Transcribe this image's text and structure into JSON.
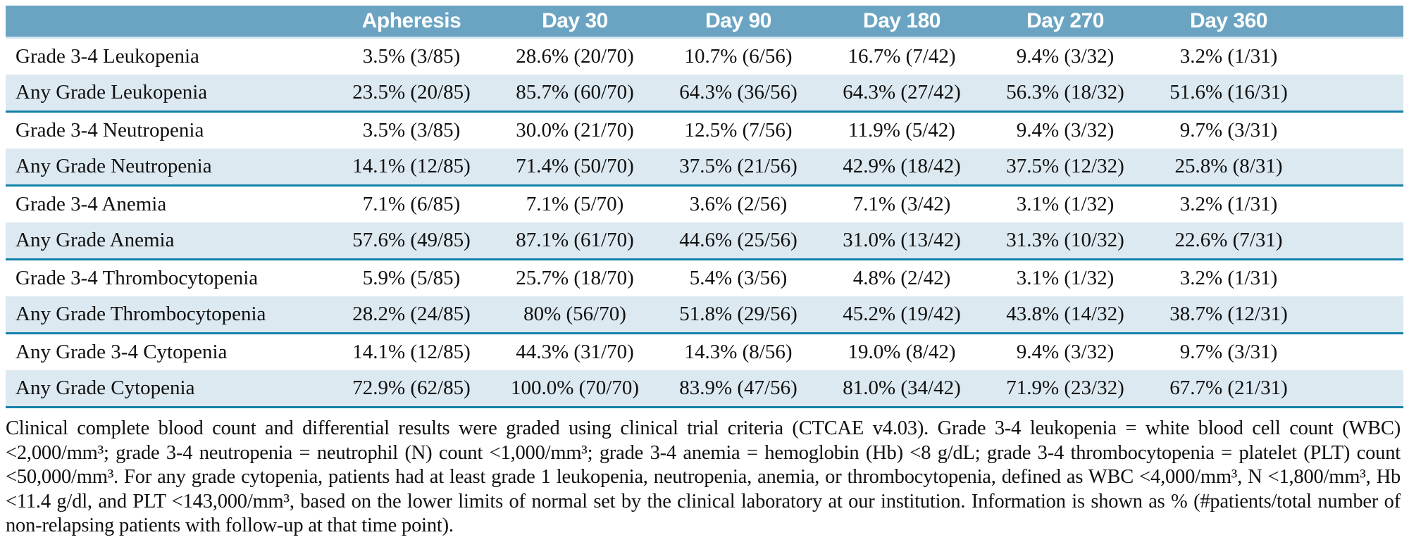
{
  "colors": {
    "header_bg": "#6aa4c2",
    "header_text": "#ffffff",
    "row_shade": "#dce9f0",
    "rule": "#1180a9",
    "text": "#101010"
  },
  "table": {
    "column_headers": [
      "",
      "Apheresis",
      "Day 30",
      "Day 90",
      "Day 180",
      "Day 270",
      "Day 360"
    ],
    "rows": [
      {
        "label": "Grade 3-4 Leukopenia",
        "shaded": false,
        "values": [
          "3.5% (3/85)",
          "28.6% (20/70)",
          "10.7% (6/56)",
          "16.7% (7/42)",
          "9.4% (3/32)",
          "3.2% (1/31)"
        ]
      },
      {
        "label": "Any Grade Leukopenia",
        "shaded": true,
        "values": [
          "23.5% (20/85)",
          "85.7% (60/70)",
          "64.3% (36/56)",
          "64.3% (27/42)",
          "56.3% (18/32)",
          "51.6% (16/31)"
        ]
      },
      {
        "label": "Grade 3-4 Neutropenia",
        "shaded": false,
        "values": [
          "3.5% (3/85)",
          "30.0% (21/70)",
          "12.5% (7/56)",
          "11.9% (5/42)",
          "9.4% (3/32)",
          "9.7% (3/31)"
        ]
      },
      {
        "label": "Any Grade Neutropenia",
        "shaded": true,
        "values": [
          "14.1% (12/85)",
          "71.4% (50/70)",
          "37.5% (21/56)",
          "42.9% (18/42)",
          "37.5% (12/32)",
          "25.8% (8/31)"
        ]
      },
      {
        "label": "Grade 3-4 Anemia",
        "shaded": false,
        "values": [
          "7.1% (6/85)",
          "7.1% (5/70)",
          "3.6% (2/56)",
          "7.1% (3/42)",
          "3.1% (1/32)",
          "3.2% (1/31)"
        ]
      },
      {
        "label": "Any Grade Anemia",
        "shaded": true,
        "values": [
          "57.6% (49/85)",
          "87.1% (61/70)",
          "44.6% (25/56)",
          "31.0% (13/42)",
          "31.3% (10/32)",
          "22.6% (7/31)"
        ]
      },
      {
        "label": "Grade 3-4 Thrombocytopenia",
        "shaded": false,
        "values": [
          "5.9% (5/85)",
          "25.7% (18/70)",
          "5.4% (3/56)",
          "4.8% (2/42)",
          "3.1% (1/32)",
          "3.2% (1/31)"
        ]
      },
      {
        "label": "Any Grade Thrombocytopenia",
        "shaded": true,
        "values": [
          "28.2% (24/85)",
          "80% (56/70)",
          "51.8% (29/56)",
          "45.2% (19/42)",
          "43.8% (14/32)",
          "38.7% (12/31)"
        ]
      },
      {
        "label": "Any Grade 3-4 Cytopenia",
        "shaded": false,
        "values": [
          "14.1% (12/85)",
          "44.3% (31/70)",
          "14.3% (8/56)",
          "19.0% (8/42)",
          "9.4% (3/32)",
          "9.7% (3/31)"
        ]
      },
      {
        "label": "Any Grade Cytopenia",
        "shaded": true,
        "values": [
          "72.9% (62/85)",
          "100.0% (70/70)",
          "83.9% (47/56)",
          "81.0% (34/42)",
          "71.9% (23/32)",
          "67.7% (21/31)"
        ]
      }
    ]
  },
  "footnote": "Clinical complete blood count and differential results were graded using clinical trial criteria (CTCAE v4.03). Grade 3-4 leukopenia = white blood cell count (WBC) <2,000/mm³; grade 3-4 neutropenia = neutrophil (N) count <1,000/mm³; grade 3-4 anemia = hemoglobin (Hb) <8 g/dL; grade 3-4 thrombocytopenia = platelet (PLT) count <50,000/mm³. For any grade cytopenia, patients had at least grade 1 leukopenia, neutropenia, anemia, or thrombocytopenia, defined as WBC <4,000/mm³, N <1,800/mm³, Hb <11.4 g/dl, and PLT <143,000/mm³, based on the lower limits of normal set by the clinical laboratory at our institution. Information is shown as % (#patients/total number of non-relapsing patients with follow-up at that time point)."
}
